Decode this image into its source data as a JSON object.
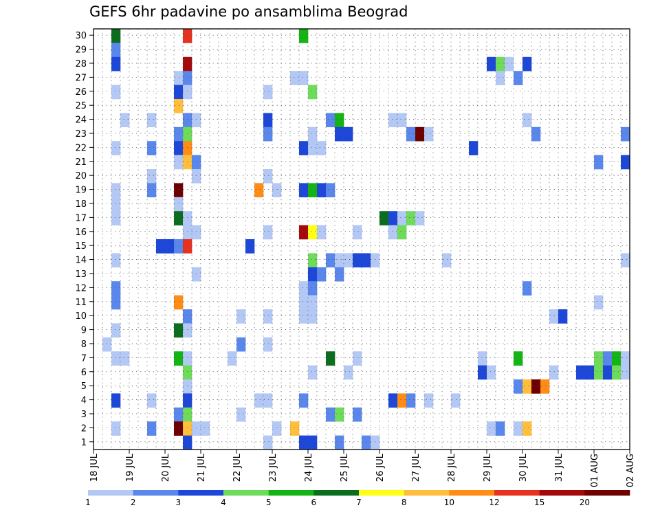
{
  "chart_data": {
    "type": "heatmap",
    "title": "GEFS 6hr padavine po ansamblima Beograd",
    "y_ticks": [
      "1",
      "2",
      "3",
      "4",
      "5",
      "6",
      "7",
      "8",
      "9",
      "10",
      "11",
      "12",
      "13",
      "14",
      "15",
      "16",
      "17",
      "18",
      "19",
      "20",
      "21",
      "22",
      "23",
      "24",
      "25",
      "26",
      "27",
      "28",
      "29",
      "30"
    ],
    "x_ticks": [
      "18 JUL",
      "19 JUL",
      "20 JUL",
      "21 JUL",
      "22 JUL",
      "23 JUL",
      "24 JUL",
      "25 JUL",
      "26 JUL",
      "27 JUL",
      "28 JUL",
      "29 JUL",
      "30 JUL",
      "31 JUL",
      "01 AUG",
      "02 AUG"
    ],
    "grid": true,
    "legend": {
      "placement": "bottom",
      "labels": [
        "1",
        "2",
        "3",
        "4",
        "5",
        "6",
        "7",
        "8",
        "10",
        "12",
        "15",
        "20"
      ],
      "colors": [
        "#b4c8f5",
        "#5a87ec",
        "#1c47d9",
        "#6edc5a",
        "#14b414",
        "#0a6e1e",
        "#ffff14",
        "#ffbe3c",
        "#ff8c14",
        "#e6321e",
        "#a50a0a",
        "#6e0000"
      ]
    },
    "cell_columns": 60,
    "cells": [
      {
        "step": 2,
        "member": 30,
        "color": "#0a6e1e"
      },
      {
        "step": 10,
        "member": 30,
        "color": "#e6321e"
      },
      {
        "step": 23,
        "member": 30,
        "color": "#14b414"
      },
      {
        "step": 2,
        "member": 29,
        "color": "#5a87ec"
      },
      {
        "step": 2,
        "member": 28,
        "color": "#1c47d9"
      },
      {
        "step": 10,
        "member": 28,
        "color": "#a50a0a"
      },
      {
        "step": 44,
        "member": 28,
        "color": "#1c47d9"
      },
      {
        "step": 45,
        "member": 28,
        "color": "#6edc5a"
      },
      {
        "step": 46,
        "member": 28,
        "color": "#b4c8f5"
      },
      {
        "step": 48,
        "member": 28,
        "color": "#1c47d9"
      },
      {
        "step": 9,
        "member": 27,
        "color": "#b4c8f5"
      },
      {
        "step": 10,
        "member": 27,
        "color": "#5a87ec"
      },
      {
        "step": 22,
        "member": 27,
        "color": "#b4c8f5"
      },
      {
        "step": 23,
        "member": 27,
        "color": "#b4c8f5"
      },
      {
        "step": 45,
        "member": 27,
        "color": "#b4c8f5"
      },
      {
        "step": 47,
        "member": 27,
        "color": "#5a87ec"
      },
      {
        "step": 2,
        "member": 26,
        "color": "#b4c8f5"
      },
      {
        "step": 9,
        "member": 26,
        "color": "#1c47d9"
      },
      {
        "step": 10,
        "member": 26,
        "color": "#b4c8f5"
      },
      {
        "step": 19,
        "member": 26,
        "color": "#b4c8f5"
      },
      {
        "step": 24,
        "member": 26,
        "color": "#6edc5a"
      },
      {
        "step": 9,
        "member": 25,
        "color": "#ffbe3c"
      },
      {
        "step": 3,
        "member": 24,
        "color": "#b4c8f5"
      },
      {
        "step": 6,
        "member": 24,
        "color": "#b4c8f5"
      },
      {
        "step": 10,
        "member": 24,
        "color": "#5a87ec"
      },
      {
        "step": 11,
        "member": 24,
        "color": "#b4c8f5"
      },
      {
        "step": 19,
        "member": 24,
        "color": "#1c47d9"
      },
      {
        "step": 26,
        "member": 24,
        "color": "#5a87ec"
      },
      {
        "step": 27,
        "member": 24,
        "color": "#14b414"
      },
      {
        "step": 33,
        "member": 24,
        "color": "#b4c8f5"
      },
      {
        "step": 34,
        "member": 24,
        "color": "#b4c8f5"
      },
      {
        "step": 48,
        "member": 24,
        "color": "#b4c8f5"
      },
      {
        "step": 9,
        "member": 23,
        "color": "#5a87ec"
      },
      {
        "step": 10,
        "member": 23,
        "color": "#6edc5a"
      },
      {
        "step": 19,
        "member": 23,
        "color": "#5a87ec"
      },
      {
        "step": 24,
        "member": 23,
        "color": "#b4c8f5"
      },
      {
        "step": 27,
        "member": 23,
        "color": "#1c47d9"
      },
      {
        "step": 28,
        "member": 23,
        "color": "#1c47d9"
      },
      {
        "step": 35,
        "member": 23,
        "color": "#5a87ec"
      },
      {
        "step": 36,
        "member": 23,
        "color": "#6e0000"
      },
      {
        "step": 37,
        "member": 23,
        "color": "#b4c8f5"
      },
      {
        "step": 49,
        "member": 23,
        "color": "#5a87ec"
      },
      {
        "step": 59,
        "member": 23,
        "color": "#5a87ec"
      },
      {
        "step": 2,
        "member": 22,
        "color": "#b4c8f5"
      },
      {
        "step": 6,
        "member": 22,
        "color": "#5a87ec"
      },
      {
        "step": 9,
        "member": 22,
        "color": "#1c47d9"
      },
      {
        "step": 10,
        "member": 22,
        "color": "#ff8c14"
      },
      {
        "step": 23,
        "member": 22,
        "color": "#1c47d9"
      },
      {
        "step": 24,
        "member": 22,
        "color": "#b4c8f5"
      },
      {
        "step": 25,
        "member": 22,
        "color": "#b4c8f5"
      },
      {
        "step": 42,
        "member": 22,
        "color": "#1c47d9"
      },
      {
        "step": 9,
        "member": 21,
        "color": "#b4c8f5"
      },
      {
        "step": 10,
        "member": 21,
        "color": "#ffbe3c"
      },
      {
        "step": 11,
        "member": 21,
        "color": "#5a87ec"
      },
      {
        "step": 56,
        "member": 21,
        "color": "#5a87ec"
      },
      {
        "step": 59,
        "member": 21,
        "color": "#1c47d9"
      },
      {
        "step": 6,
        "member": 20,
        "color": "#b4c8f5"
      },
      {
        "step": 11,
        "member": 20,
        "color": "#b4c8f5"
      },
      {
        "step": 19,
        "member": 20,
        "color": "#b4c8f5"
      },
      {
        "step": 2,
        "member": 19,
        "color": "#b4c8f5"
      },
      {
        "step": 6,
        "member": 19,
        "color": "#5a87ec"
      },
      {
        "step": 9,
        "member": 19,
        "color": "#6e0000"
      },
      {
        "step": 18,
        "member": 19,
        "color": "#ff8c14"
      },
      {
        "step": 20,
        "member": 19,
        "color": "#b4c8f5"
      },
      {
        "step": 23,
        "member": 19,
        "color": "#1c47d9"
      },
      {
        "step": 24,
        "member": 19,
        "color": "#14b414"
      },
      {
        "step": 25,
        "member": 19,
        "color": "#1c47d9"
      },
      {
        "step": 26,
        "member": 19,
        "color": "#5a87ec"
      },
      {
        "step": 2,
        "member": 18,
        "color": "#b4c8f5"
      },
      {
        "step": 9,
        "member": 18,
        "color": "#b4c8f5"
      },
      {
        "step": 2,
        "member": 17,
        "color": "#b4c8f5"
      },
      {
        "step": 9,
        "member": 17,
        "color": "#0a6e1e"
      },
      {
        "step": 10,
        "member": 17,
        "color": "#b4c8f5"
      },
      {
        "step": 32,
        "member": 17,
        "color": "#0a6e1e"
      },
      {
        "step": 33,
        "member": 17,
        "color": "#1c47d9"
      },
      {
        "step": 34,
        "member": 17,
        "color": "#b4c8f5"
      },
      {
        "step": 35,
        "member": 17,
        "color": "#6edc5a"
      },
      {
        "step": 36,
        "member": 17,
        "color": "#b4c8f5"
      },
      {
        "step": 10,
        "member": 16,
        "color": "#b4c8f5"
      },
      {
        "step": 11,
        "member": 16,
        "color": "#b4c8f5"
      },
      {
        "step": 19,
        "member": 16,
        "color": "#b4c8f5"
      },
      {
        "step": 23,
        "member": 16,
        "color": "#a50a0a"
      },
      {
        "step": 24,
        "member": 16,
        "color": "#ffff14"
      },
      {
        "step": 25,
        "member": 16,
        "color": "#b4c8f5"
      },
      {
        "step": 29,
        "member": 16,
        "color": "#b4c8f5"
      },
      {
        "step": 33,
        "member": 16,
        "color": "#b4c8f5"
      },
      {
        "step": 34,
        "member": 16,
        "color": "#6edc5a"
      },
      {
        "step": 7,
        "member": 15,
        "color": "#1c47d9"
      },
      {
        "step": 8,
        "member": 15,
        "color": "#1c47d9"
      },
      {
        "step": 9,
        "member": 15,
        "color": "#5a87ec"
      },
      {
        "step": 10,
        "member": 15,
        "color": "#e6321e"
      },
      {
        "step": 17,
        "member": 15,
        "color": "#1c47d9"
      },
      {
        "step": 2,
        "member": 14,
        "color": "#b4c8f5"
      },
      {
        "step": 24,
        "member": 14,
        "color": "#6edc5a"
      },
      {
        "step": 26,
        "member": 14,
        "color": "#5a87ec"
      },
      {
        "step": 27,
        "member": 14,
        "color": "#b4c8f5"
      },
      {
        "step": 28,
        "member": 14,
        "color": "#b4c8f5"
      },
      {
        "step": 29,
        "member": 14,
        "color": "#1c47d9"
      },
      {
        "step": 30,
        "member": 14,
        "color": "#1c47d9"
      },
      {
        "step": 31,
        "member": 14,
        "color": "#b4c8f5"
      },
      {
        "step": 39,
        "member": 14,
        "color": "#b4c8f5"
      },
      {
        "step": 59,
        "member": 14,
        "color": "#b4c8f5"
      },
      {
        "step": 11,
        "member": 13,
        "color": "#b4c8f5"
      },
      {
        "step": 24,
        "member": 13,
        "color": "#1c47d9"
      },
      {
        "step": 25,
        "member": 13,
        "color": "#5a87ec"
      },
      {
        "step": 27,
        "member": 13,
        "color": "#5a87ec"
      },
      {
        "step": 2,
        "member": 12,
        "color": "#5a87ec"
      },
      {
        "step": 23,
        "member": 12,
        "color": "#b4c8f5"
      },
      {
        "step": 24,
        "member": 12,
        "color": "#5a87ec"
      },
      {
        "step": 48,
        "member": 12,
        "color": "#5a87ec"
      },
      {
        "step": 2,
        "member": 11,
        "color": "#5a87ec"
      },
      {
        "step": 9,
        "member": 11,
        "color": "#ff8c14"
      },
      {
        "step": 23,
        "member": 11,
        "color": "#b4c8f5"
      },
      {
        "step": 24,
        "member": 11,
        "color": "#b4c8f5"
      },
      {
        "step": 56,
        "member": 11,
        "color": "#b4c8f5"
      },
      {
        "step": 10,
        "member": 10,
        "color": "#5a87ec"
      },
      {
        "step": 16,
        "member": 10,
        "color": "#b4c8f5"
      },
      {
        "step": 19,
        "member": 10,
        "color": "#b4c8f5"
      },
      {
        "step": 23,
        "member": 10,
        "color": "#b4c8f5"
      },
      {
        "step": 24,
        "member": 10,
        "color": "#b4c8f5"
      },
      {
        "step": 51,
        "member": 10,
        "color": "#b4c8f5"
      },
      {
        "step": 52,
        "member": 10,
        "color": "#1c47d9"
      },
      {
        "step": 2,
        "member": 9,
        "color": "#b4c8f5"
      },
      {
        "step": 9,
        "member": 9,
        "color": "#0a6e1e"
      },
      {
        "step": 10,
        "member": 9,
        "color": "#b4c8f5"
      },
      {
        "step": 1,
        "member": 8,
        "color": "#b4c8f5"
      },
      {
        "step": 16,
        "member": 8,
        "color": "#5a87ec"
      },
      {
        "step": 19,
        "member": 8,
        "color": "#b4c8f5"
      },
      {
        "step": 2,
        "member": 7,
        "color": "#b4c8f5"
      },
      {
        "step": 3,
        "member": 7,
        "color": "#b4c8f5"
      },
      {
        "step": 9,
        "member": 7,
        "color": "#14b414"
      },
      {
        "step": 10,
        "member": 7,
        "color": "#b4c8f5"
      },
      {
        "step": 15,
        "member": 7,
        "color": "#b4c8f5"
      },
      {
        "step": 26,
        "member": 7,
        "color": "#0a6e1e"
      },
      {
        "step": 29,
        "member": 7,
        "color": "#b4c8f5"
      },
      {
        "step": 43,
        "member": 7,
        "color": "#b4c8f5"
      },
      {
        "step": 47,
        "member": 7,
        "color": "#14b414"
      },
      {
        "step": 56,
        "member": 7,
        "color": "#6edc5a"
      },
      {
        "step": 57,
        "member": 7,
        "color": "#5a87ec"
      },
      {
        "step": 58,
        "member": 7,
        "color": "#14b414"
      },
      {
        "step": 59,
        "member": 7,
        "color": "#b4c8f5"
      },
      {
        "step": 10,
        "member": 6,
        "color": "#6edc5a"
      },
      {
        "step": 24,
        "member": 6,
        "color": "#b4c8f5"
      },
      {
        "step": 28,
        "member": 6,
        "color": "#b4c8f5"
      },
      {
        "step": 43,
        "member": 6,
        "color": "#1c47d9"
      },
      {
        "step": 44,
        "member": 6,
        "color": "#b4c8f5"
      },
      {
        "step": 51,
        "member": 6,
        "color": "#b4c8f5"
      },
      {
        "step": 54,
        "member": 6,
        "color": "#1c47d9"
      },
      {
        "step": 55,
        "member": 6,
        "color": "#1c47d9"
      },
      {
        "step": 56,
        "member": 6,
        "color": "#6edc5a"
      },
      {
        "step": 57,
        "member": 6,
        "color": "#1c47d9"
      },
      {
        "step": 58,
        "member": 6,
        "color": "#6edc5a"
      },
      {
        "step": 59,
        "member": 6,
        "color": "#b4c8f5"
      },
      {
        "step": 10,
        "member": 5,
        "color": "#b4c8f5"
      },
      {
        "step": 47,
        "member": 5,
        "color": "#5a87ec"
      },
      {
        "step": 48,
        "member": 5,
        "color": "#ffbe3c"
      },
      {
        "step": 49,
        "member": 5,
        "color": "#6e0000"
      },
      {
        "step": 50,
        "member": 5,
        "color": "#ff8c14"
      },
      {
        "step": 2,
        "member": 4,
        "color": "#1c47d9"
      },
      {
        "step": 6,
        "member": 4,
        "color": "#b4c8f5"
      },
      {
        "step": 10,
        "member": 4,
        "color": "#1c47d9"
      },
      {
        "step": 18,
        "member": 4,
        "color": "#b4c8f5"
      },
      {
        "step": 19,
        "member": 4,
        "color": "#b4c8f5"
      },
      {
        "step": 23,
        "member": 4,
        "color": "#5a87ec"
      },
      {
        "step": 33,
        "member": 4,
        "color": "#1c47d9"
      },
      {
        "step": 34,
        "member": 4,
        "color": "#ff8c14"
      },
      {
        "step": 35,
        "member": 4,
        "color": "#5a87ec"
      },
      {
        "step": 37,
        "member": 4,
        "color": "#b4c8f5"
      },
      {
        "step": 40,
        "member": 4,
        "color": "#b4c8f5"
      },
      {
        "step": 9,
        "member": 3,
        "color": "#5a87ec"
      },
      {
        "step": 10,
        "member": 3,
        "color": "#6edc5a"
      },
      {
        "step": 16,
        "member": 3,
        "color": "#b4c8f5"
      },
      {
        "step": 26,
        "member": 3,
        "color": "#5a87ec"
      },
      {
        "step": 27,
        "member": 3,
        "color": "#6edc5a"
      },
      {
        "step": 29,
        "member": 3,
        "color": "#5a87ec"
      },
      {
        "step": 2,
        "member": 2,
        "color": "#b4c8f5"
      },
      {
        "step": 6,
        "member": 2,
        "color": "#5a87ec"
      },
      {
        "step": 9,
        "member": 2,
        "color": "#6e0000"
      },
      {
        "step": 10,
        "member": 2,
        "color": "#ffbe3c"
      },
      {
        "step": 11,
        "member": 2,
        "color": "#b4c8f5"
      },
      {
        "step": 12,
        "member": 2,
        "color": "#b4c8f5"
      },
      {
        "step": 20,
        "member": 2,
        "color": "#b4c8f5"
      },
      {
        "step": 22,
        "member": 2,
        "color": "#ffbe3c"
      },
      {
        "step": 44,
        "member": 2,
        "color": "#b4c8f5"
      },
      {
        "step": 45,
        "member": 2,
        "color": "#5a87ec"
      },
      {
        "step": 47,
        "member": 2,
        "color": "#b4c8f5"
      },
      {
        "step": 48,
        "member": 2,
        "color": "#ffbe3c"
      },
      {
        "step": 10,
        "member": 1,
        "color": "#1c47d9"
      },
      {
        "step": 19,
        "member": 1,
        "color": "#b4c8f5"
      },
      {
        "step": 23,
        "member": 1,
        "color": "#1c47d9"
      },
      {
        "step": 24,
        "member": 1,
        "color": "#1c47d9"
      },
      {
        "step": 27,
        "member": 1,
        "color": "#5a87ec"
      },
      {
        "step": 30,
        "member": 1,
        "color": "#5a87ec"
      },
      {
        "step": 31,
        "member": 1,
        "color": "#b4c8f5"
      }
    ]
  }
}
